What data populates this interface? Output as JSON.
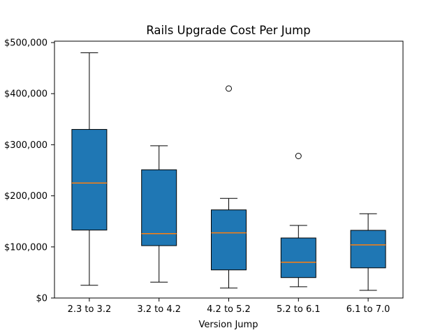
{
  "figure": {
    "background": "#ffffff"
  },
  "chart_data": {
    "type": "boxplot",
    "title": "Rails Upgrade Cost Per Jump",
    "xlabel": "Version Jump",
    "ylabel": "",
    "ylim": [
      0,
      500000
    ],
    "grid": false,
    "legend": "none",
    "yticks": [
      {
        "value": 0,
        "label": "$0"
      },
      {
        "value": 100000,
        "label": "$100,000"
      },
      {
        "value": 200000,
        "label": "$200,000"
      },
      {
        "value": 300000,
        "label": "$300,000"
      },
      {
        "value": 400000,
        "label": "$400,000"
      },
      {
        "value": 500000,
        "label": "$500,000"
      }
    ],
    "categories": [
      "2.3 to 3.2",
      "3.2 to 4.2",
      "4.2 to 5.2",
      "5.2 to 6.1",
      "6.1 to 7.0"
    ],
    "series": [
      {
        "label": "2.3 to 3.2",
        "whisker_low": 25000,
        "q1": 133000,
        "median": 225000,
        "q3": 330000,
        "whisker_high": 480000,
        "outliers": []
      },
      {
        "label": "3.2 to 4.2",
        "whisker_low": 31000,
        "q1": 102500,
        "median": 126000,
        "q3": 251000,
        "whisker_high": 298000,
        "outliers": []
      },
      {
        "label": "4.2 to 5.2",
        "whisker_low": 19500,
        "q1": 55000,
        "median": 127500,
        "q3": 172500,
        "whisker_high": 195000,
        "outliers": [
          410000
        ]
      },
      {
        "label": "5.2 to 6.1",
        "whisker_low": 22000,
        "q1": 40000,
        "median": 70000,
        "q3": 117500,
        "whisker_high": 142000,
        "outliers": [
          278000
        ]
      },
      {
        "label": "6.1 to 7.0",
        "whisker_low": 15000,
        "q1": 59000,
        "median": 104000,
        "q3": 132500,
        "whisker_high": 165000,
        "outliers": []
      }
    ],
    "colors": {
      "box_fill": "#1f77b4",
      "box_edge": "#000000",
      "whisker": "#000000",
      "median": "#ff7f0e",
      "outlier_edge": "#000000",
      "spine": "#000000",
      "text": "#000000"
    }
  }
}
